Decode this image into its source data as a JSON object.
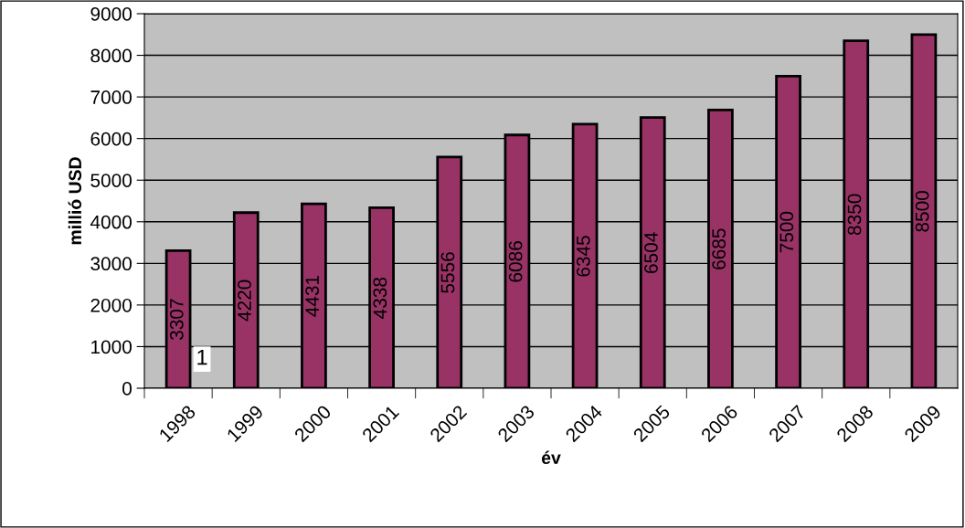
{
  "chart_data": {
    "type": "bar",
    "xlabel": "év",
    "ylabel": "millió USD",
    "categories": [
      "1998",
      "1999",
      "2000",
      "2001",
      "2002",
      "2003",
      "2004",
      "2005",
      "2006",
      "2007",
      "2008",
      "2009"
    ],
    "values": [
      3307,
      4220,
      4431,
      4338,
      5556,
      6086,
      6345,
      6504,
      6685,
      7500,
      8350,
      8500
    ],
    "color": "#993366",
    "ylim": [
      0,
      9000
    ],
    "yticks": [
      0,
      1000,
      2000,
      3000,
      4000,
      5000,
      6000,
      7000,
      8000,
      9000
    ],
    "grid": "y",
    "data_labels": true,
    "annotations": [
      "1"
    ]
  }
}
